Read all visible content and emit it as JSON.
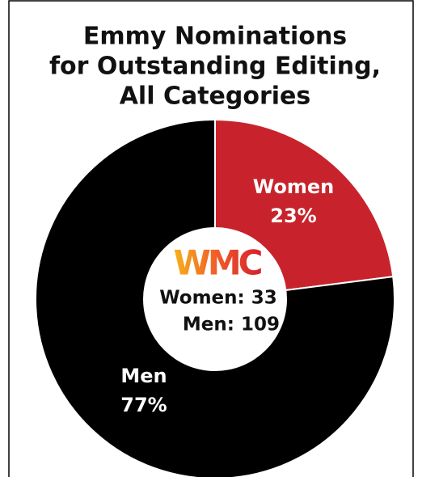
{
  "chart_data": {
    "type": "donut",
    "title": [
      "Emmy Nominations",
      "for Outstanding Editing,",
      "All Categories"
    ],
    "categories": [
      "Women",
      "Men"
    ],
    "values": [
      23,
      77
    ],
    "value_labels": [
      "23%",
      "77%"
    ],
    "colors": [
      "#c8232c",
      "#000000"
    ],
    "logo": "WMC",
    "annotations": [
      "Women: 33",
      "Men: 109"
    ]
  }
}
